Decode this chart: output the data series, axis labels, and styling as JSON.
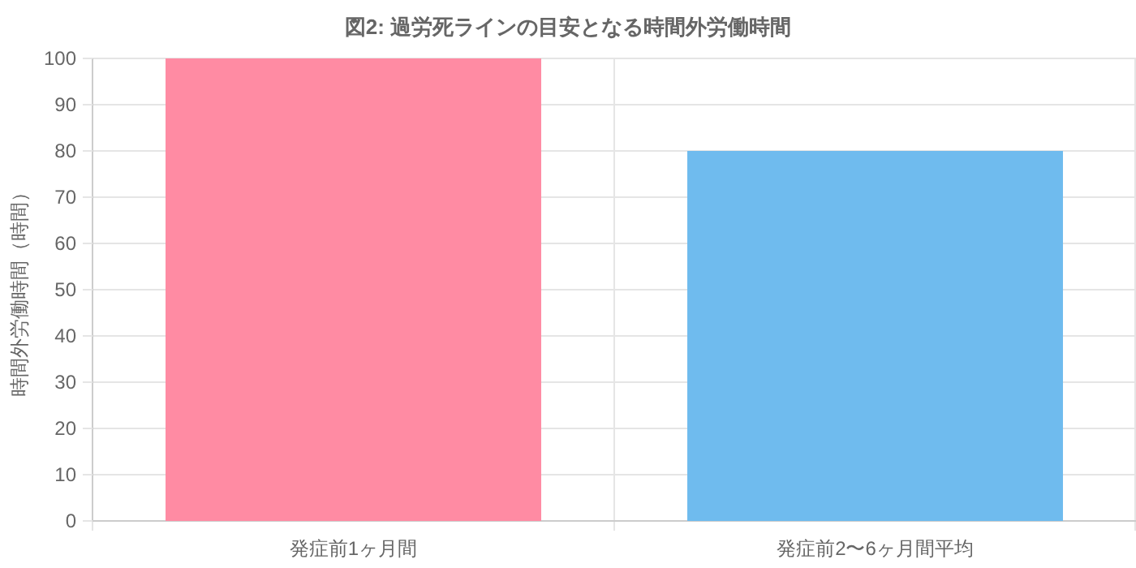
{
  "chart_data": {
    "type": "bar",
    "title": "図2: 過労死ラインの目安となる時間外労働時間",
    "ylabel": "時間外労働時間（時間）",
    "categories": [
      "発症前1ヶ月間",
      "発症前2〜6ヶ月間平均"
    ],
    "values": [
      100,
      80
    ],
    "colors": [
      "#ff8ba3",
      "#6fbbee"
    ],
    "ylim": [
      0,
      100
    ],
    "yticks": [
      0,
      10,
      20,
      30,
      40,
      50,
      60,
      70,
      80,
      90,
      100
    ],
    "grid": true
  }
}
